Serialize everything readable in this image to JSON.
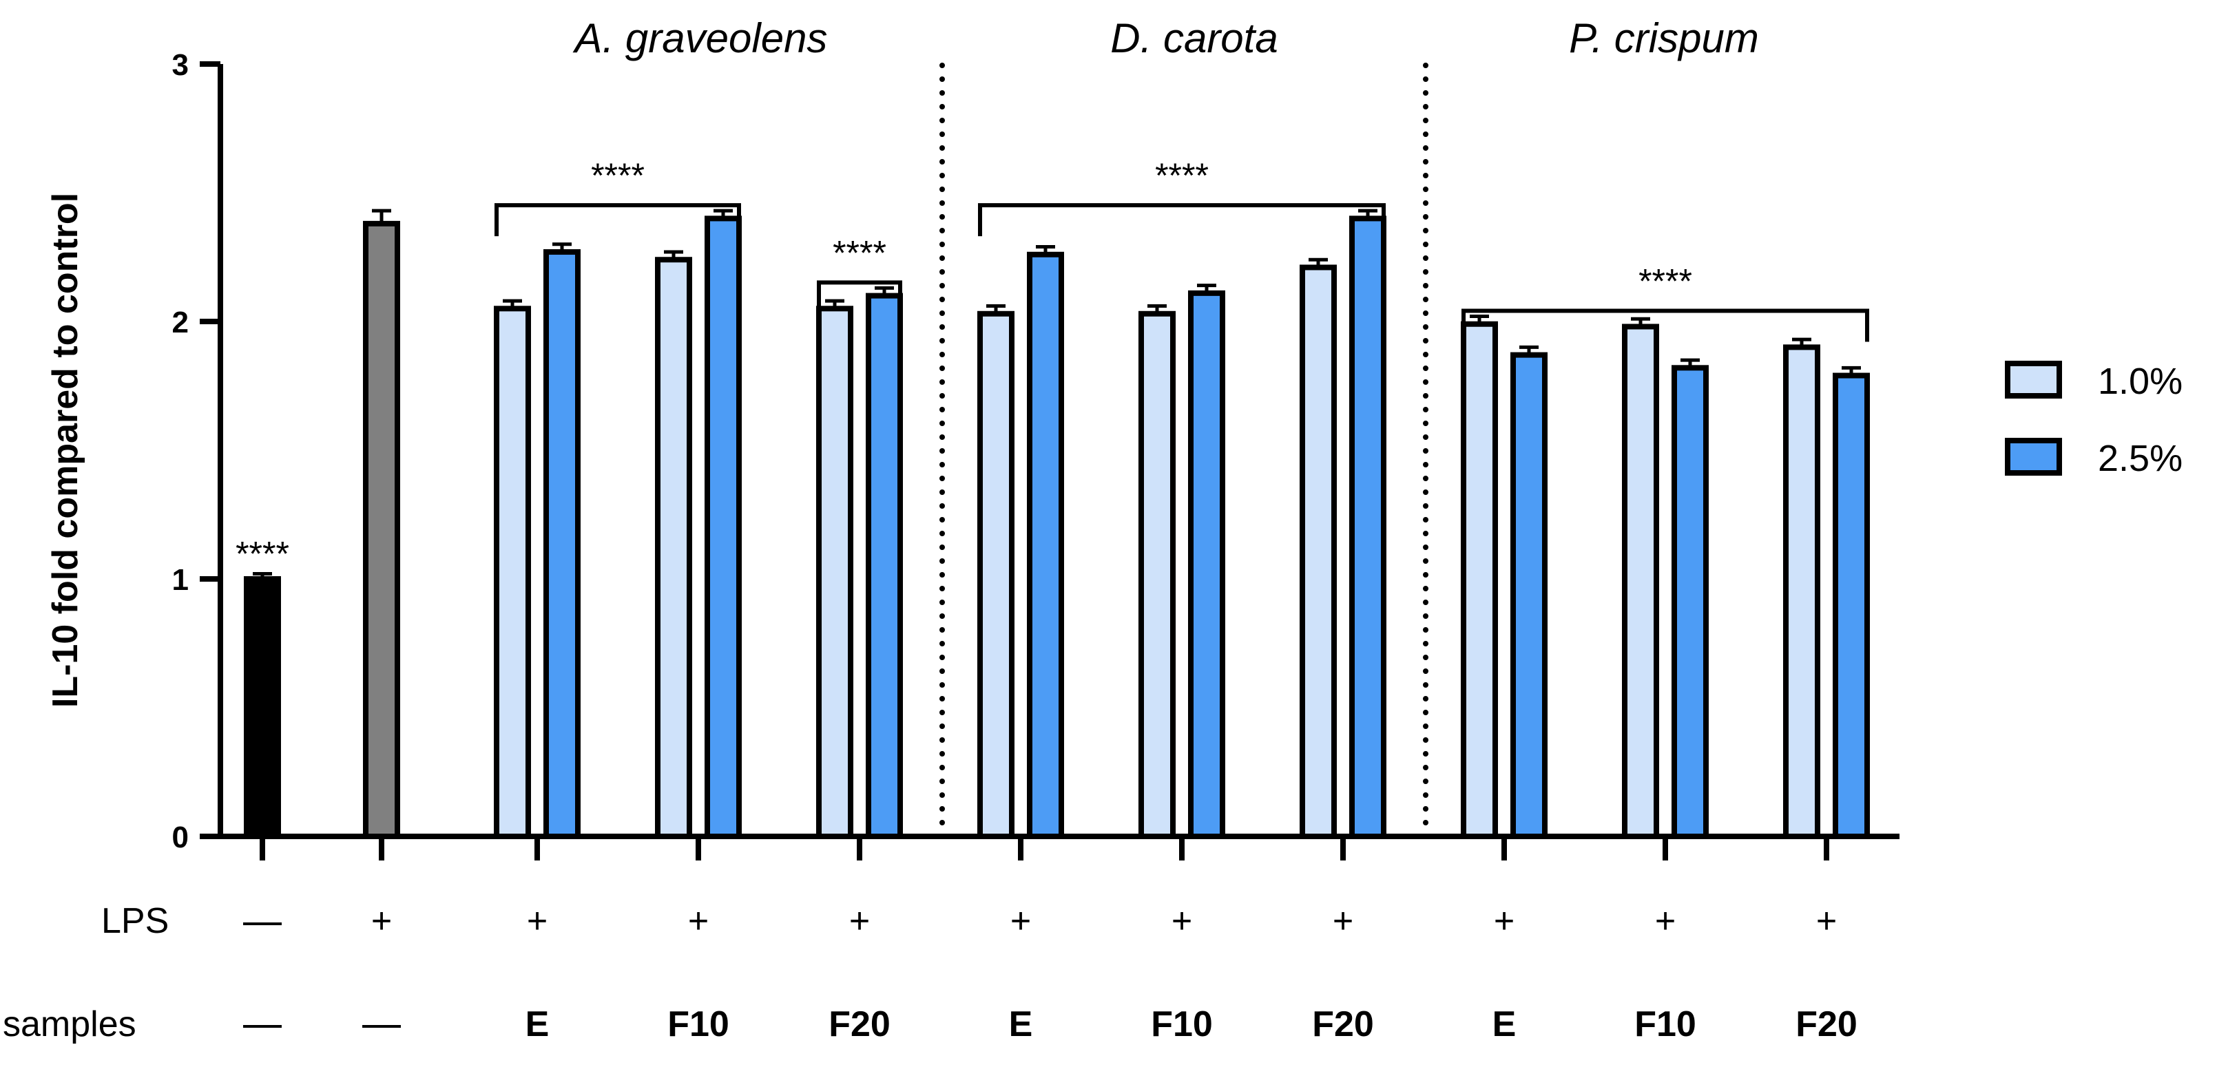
{
  "chart_data": {
    "type": "bar",
    "ylabel": "IL-10 fold compared to control",
    "ylim": [
      0,
      3
    ],
    "yticks": [
      "0",
      "1",
      "2",
      "3"
    ],
    "groups": [
      {
        "title": "A. graveolens"
      },
      {
        "title": "D. carota"
      },
      {
        "title": "P. crispum"
      }
    ],
    "rows": {
      "lps_label": "LPS",
      "samples_label": "samples"
    },
    "categories": [
      {
        "lps": "—",
        "sample": "—",
        "bars": [
          {
            "series": "control",
            "value": 1.0,
            "err": 0.02
          }
        ],
        "stars": "****"
      },
      {
        "lps": "+",
        "sample": "—",
        "bars": [
          {
            "series": "lps",
            "value": 2.38,
            "err": 0.05
          }
        ]
      },
      {
        "lps": "+",
        "sample": "E",
        "bars": [
          {
            "series": "1.0%",
            "value": 2.05,
            "err": 0.03
          },
          {
            "series": "2.5%",
            "value": 2.27,
            "err": 0.03
          }
        ]
      },
      {
        "lps": "+",
        "sample": "F10",
        "bars": [
          {
            "series": "1.0%",
            "value": 2.24,
            "err": 0.03
          },
          {
            "series": "2.5%",
            "value": 2.4,
            "err": 0.03
          }
        ]
      },
      {
        "lps": "+",
        "sample": "F20",
        "bars": [
          {
            "series": "1.0%",
            "value": 2.05,
            "err": 0.03
          },
          {
            "series": "2.5%",
            "value": 2.1,
            "err": 0.03
          }
        ]
      },
      {
        "lps": "+",
        "sample": "E",
        "bars": [
          {
            "series": "1.0%",
            "value": 2.03,
            "err": 0.03
          },
          {
            "series": "2.5%",
            "value": 2.26,
            "err": 0.03
          }
        ]
      },
      {
        "lps": "+",
        "sample": "F10",
        "bars": [
          {
            "series": "1.0%",
            "value": 2.03,
            "err": 0.03
          },
          {
            "series": "2.5%",
            "value": 2.11,
            "err": 0.03
          }
        ]
      },
      {
        "lps": "+",
        "sample": "F20",
        "bars": [
          {
            "series": "1.0%",
            "value": 2.21,
            "err": 0.03
          },
          {
            "series": "2.5%",
            "value": 2.4,
            "err": 0.03
          }
        ]
      },
      {
        "lps": "+",
        "sample": "E",
        "bars": [
          {
            "series": "1.0%",
            "value": 1.99,
            "err": 0.03
          },
          {
            "series": "2.5%",
            "value": 1.87,
            "err": 0.03
          }
        ]
      },
      {
        "lps": "+",
        "sample": "F10",
        "bars": [
          {
            "series": "1.0%",
            "value": 1.98,
            "err": 0.03
          },
          {
            "series": "2.5%",
            "value": 1.82,
            "err": 0.03
          }
        ]
      },
      {
        "lps": "+",
        "sample": "F20",
        "bars": [
          {
            "series": "1.0%",
            "value": 1.9,
            "err": 0.03
          },
          {
            "series": "2.5%",
            "value": 1.79,
            "err": 0.03
          }
        ]
      }
    ],
    "significance": [
      {
        "from": 2,
        "to": 3,
        "label": "****"
      },
      {
        "from": 4,
        "to": 4,
        "label": "****"
      },
      {
        "from": 5,
        "to": 7,
        "label": "****"
      },
      {
        "from": 8,
        "to": 10,
        "label": "****"
      }
    ],
    "legend": [
      {
        "label": "1.0%",
        "color": "#CFE2FA"
      },
      {
        "label": "2.5%",
        "color": "#4D9CF5"
      }
    ],
    "colors": {
      "control": "#000000",
      "lps": "#808080",
      "1.0%": "#CFE2FA",
      "2.5%": "#4D9CF5"
    }
  }
}
